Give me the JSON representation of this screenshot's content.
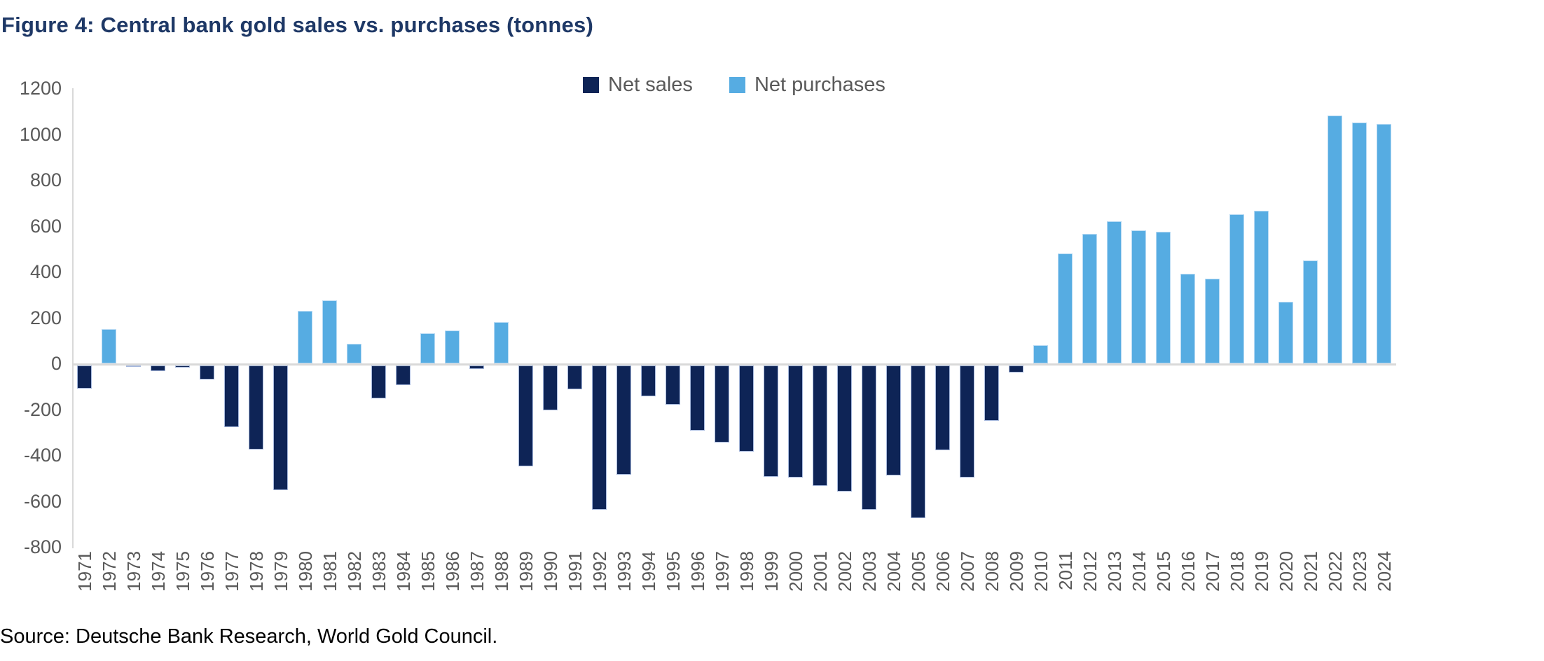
{
  "figure": {
    "title": "Figure 4: Central bank gold sales vs. purchases (tonnes)",
    "source": "Source: Deutsche Bank Research, World Gold Council."
  },
  "legend": [
    {
      "label": "Net sales",
      "color": "#0e2456"
    },
    {
      "label": "Net purchases",
      "color": "#56ace2"
    }
  ],
  "colors": {
    "title": "#1e3866",
    "axis_line": "#d9d9d9",
    "tick_text": "#595959",
    "net_sales": "#0e2456",
    "net_purchases": "#56ace2"
  },
  "chart_data": {
    "type": "bar",
    "title": "Figure 4: Central bank gold sales vs. purchases (tonnes)",
    "unit": "tonnes",
    "categories": [
      1971,
      1972,
      1973,
      1974,
      1975,
      1976,
      1977,
      1978,
      1979,
      1980,
      1981,
      1982,
      1983,
      1984,
      1985,
      1986,
      1987,
      1988,
      1989,
      1990,
      1991,
      1992,
      1993,
      1994,
      1995,
      1996,
      1997,
      1998,
      1999,
      2000,
      2001,
      2002,
      2003,
      2004,
      2005,
      2006,
      2007,
      2008,
      2009,
      2010,
      2011,
      2012,
      2013,
      2014,
      2015,
      2016,
      2017,
      2018,
      2019,
      2020,
      2021,
      2022,
      2023,
      2024
    ],
    "values": [
      -100,
      150,
      -5,
      -25,
      -10,
      -60,
      -270,
      -365,
      -545,
      230,
      275,
      85,
      -145,
      -85,
      130,
      145,
      -15,
      180,
      -440,
      -195,
      -105,
      -630,
      -475,
      -135,
      -170,
      -285,
      -335,
      -375,
      -485,
      -490,
      -525,
      -550,
      -630,
      -480,
      -665,
      -370,
      -490,
      -240,
      -30,
      80,
      480,
      565,
      620,
      580,
      575,
      390,
      370,
      650,
      665,
      270,
      450,
      1080,
      1050,
      1045
    ],
    "series": [
      {
        "name": "Net sales",
        "color": "#0e2456",
        "applies_to": "negative values"
      },
      {
        "name": "Net purchases",
        "color": "#56ace2",
        "applies_to": "positive values"
      }
    ],
    "xlabel": "",
    "ylabel": "",
    "ylim": [
      -800,
      1200
    ],
    "yticks": [
      1200,
      1000,
      800,
      600,
      400,
      200,
      0,
      -200,
      -400,
      -600,
      -800
    ],
    "grid": false,
    "legend_position": "top-center",
    "x_tick_rotation": -90
  }
}
